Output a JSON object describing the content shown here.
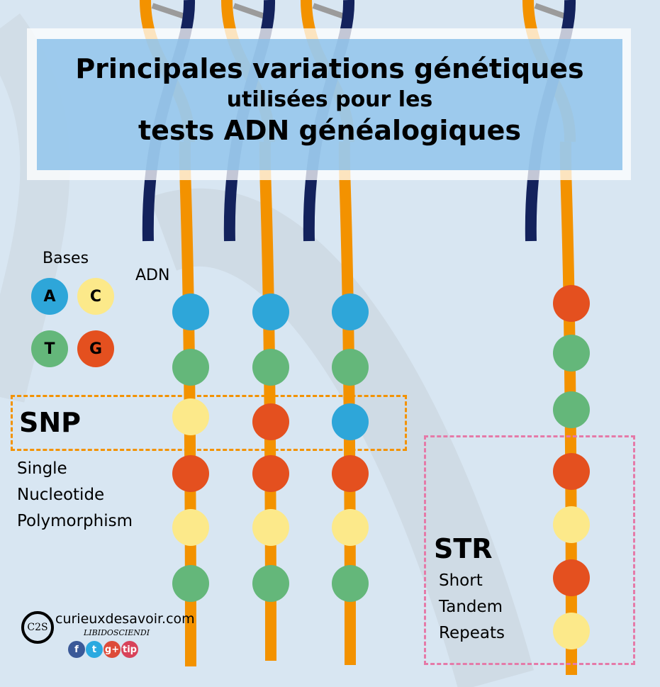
{
  "title": {
    "line1": "Principales variations génétiques",
    "line2": "utilisées pour les",
    "line3": "tests ADN généalogiques"
  },
  "legend": {
    "title": "Bases",
    "bases": [
      {
        "letter": "A",
        "color": "#2ea6d9"
      },
      {
        "letter": "C",
        "color": "#fce98a"
      },
      {
        "letter": "T",
        "color": "#64b77a"
      },
      {
        "letter": "G",
        "color": "#e4501f"
      }
    ]
  },
  "dna_label": "ADN",
  "snp": {
    "label": "SNP",
    "lines": [
      "Single",
      "Nucleotide",
      "Polymorphism"
    ]
  },
  "str": {
    "label": "STR",
    "lines": [
      "Short",
      "Tandem",
      "Repeats"
    ]
  },
  "strands": [
    {
      "sequence": [
        "A",
        "T",
        "C",
        "G",
        "C",
        "T"
      ]
    },
    {
      "sequence": [
        "A",
        "T",
        "G",
        "G",
        "C",
        "T"
      ]
    },
    {
      "sequence": [
        "A",
        "T",
        "A",
        "G",
        "C",
        "T"
      ]
    },
    {
      "sequence": [
        "G",
        "T",
        "T",
        "G",
        "C",
        "G",
        "C"
      ]
    }
  ],
  "colors": {
    "backbone_orange": "#f39200",
    "backbone_navy": "#13225c",
    "A": "#2ea6d9",
    "C": "#fce98a",
    "T": "#64b77a",
    "G": "#e4501f"
  },
  "footer": {
    "site": "curieuxdesavoir.com",
    "tagline": "LIBIDOSCIENDI",
    "logo_text": "C2S",
    "social": [
      {
        "name": "facebook",
        "glyph": "f",
        "color": "#3b5998"
      },
      {
        "name": "twitter",
        "glyph": "t",
        "color": "#2aa9e0"
      },
      {
        "name": "google-plus",
        "glyph": "g+",
        "color": "#dd4b39"
      },
      {
        "name": "tip",
        "glyph": "tip",
        "color": "#d8435a"
      }
    ]
  }
}
